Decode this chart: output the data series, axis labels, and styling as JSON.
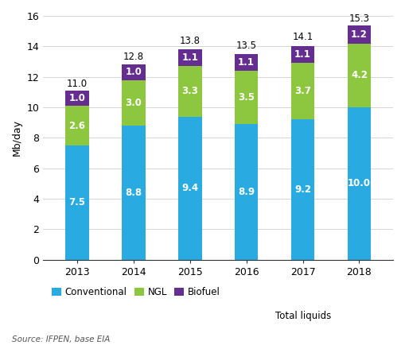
{
  "years": [
    "2013",
    "2014",
    "2015",
    "2016",
    "2017",
    "2018"
  ],
  "conventional": [
    7.5,
    8.8,
    9.4,
    8.9,
    9.2,
    10.0
  ],
  "ngl": [
    2.6,
    3.0,
    3.3,
    3.5,
    3.7,
    4.2
  ],
  "biofuel": [
    1.0,
    1.0,
    1.1,
    1.1,
    1.1,
    1.2
  ],
  "totals": [
    11.0,
    12.8,
    13.8,
    13.5,
    14.1,
    15.3
  ],
  "color_conventional": "#29ABE2",
  "color_ngl": "#8DC63F",
  "color_biofuel": "#662D91",
  "ylabel": "Mb/day",
  "ylim": [
    0,
    16
  ],
  "yticks": [
    0,
    2,
    4,
    6,
    8,
    10,
    12,
    14,
    16
  ],
  "legend_labels": [
    "Conventional",
    "NGL",
    "Biofuel",
    "Total liquids"
  ],
  "source_text": "Source: IFPEN, base EIA",
  "bar_width": 0.42,
  "label_fontsize": 8.5,
  "tick_fontsize": 9,
  "source_fontsize": 7.5
}
